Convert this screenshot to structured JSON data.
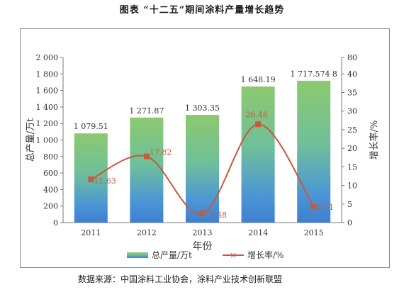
{
  "figure_title": "图表 “十二五”期间涂料产量增长趋势",
  "source_note": "数据来源：中国涂料工业协会，涂料产业技术创新联盟",
  "chart_data": {
    "type": "bar",
    "categories": [
      "2011",
      "2012",
      "2013",
      "2014",
      "2015"
    ],
    "series": [
      {
        "name": "总产量/万t",
        "type": "bar",
        "axis": "left",
        "values": [
          1079.51,
          1271.87,
          1303.35,
          1648.19,
          1717.5748
        ],
        "labels": [
          "1 079.51",
          "1 271.87",
          "1 303.35",
          "1 648.19",
          "1 717.574 8"
        ],
        "color": "#5aa9c9"
      },
      {
        "name": "增长率/%",
        "type": "line",
        "axis": "right",
        "values": [
          11.63,
          17.82,
          2.48,
          26.46,
          4.21
        ],
        "labels": [
          "11.63",
          "17.82",
          "2.48",
          "26.46",
          "4.21"
        ],
        "color": "#c8593a"
      }
    ],
    "xlabel": "年份",
    "ylabel": "总产量/万t",
    "y2label": "增长率/%",
    "ylim": [
      0,
      2000
    ],
    "y2lim": [
      0,
      80
    ],
    "yticks": [
      "0",
      "200",
      "400",
      "600",
      "800",
      "1 000",
      "1 200",
      "1 400",
      "1 600",
      "1 800",
      "2 000"
    ],
    "y2ticks": [
      "0",
      "5",
      "10",
      "15",
      "20",
      "25",
      "30",
      "35",
      "40",
      "80"
    ],
    "grid": false,
    "legend_position": "bottom"
  }
}
